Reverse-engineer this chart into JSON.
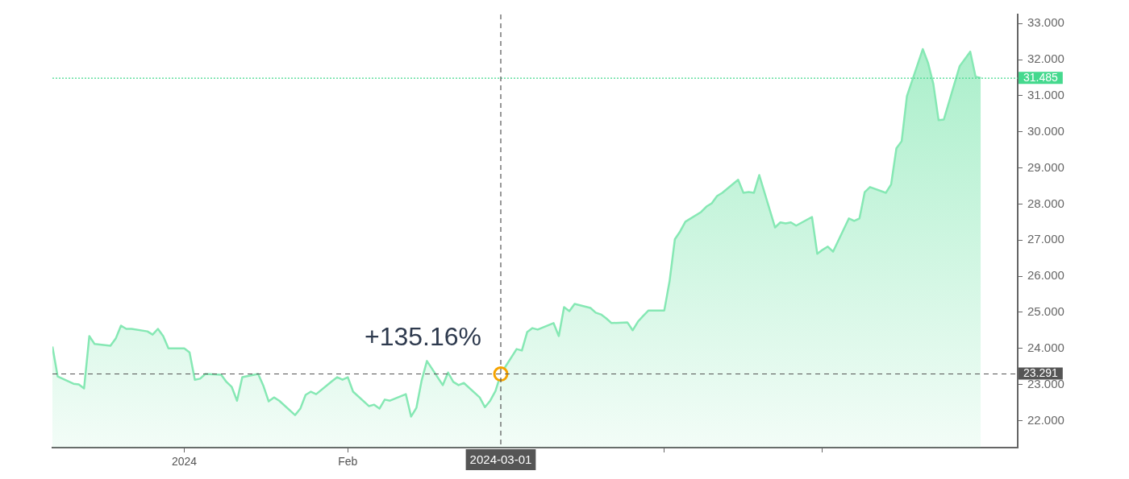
{
  "chart_data": {
    "type": "area",
    "grid": false,
    "legend": false,
    "xlim": [
      "2023-12-07",
      "2024-06-07"
    ],
    "xticks": [
      {
        "value": "2024-01-01",
        "label": "2024"
      },
      {
        "value": "2024-02-01",
        "label": "Feb"
      },
      {
        "value": "2024-04-01",
        "label": null
      },
      {
        "value": "2024-05-01",
        "label": null
      }
    ],
    "ylim": [
      21.25,
      33.25
    ],
    "yticks": [
      {
        "value": 22,
        "label": "22.000"
      },
      {
        "value": 23,
        "label": "23.000"
      },
      {
        "value": 24,
        "label": "24.000"
      },
      {
        "value": 25,
        "label": "25.000"
      },
      {
        "value": 26,
        "label": "26.000"
      },
      {
        "value": 27,
        "label": "27.000"
      },
      {
        "value": 28,
        "label": "28.000"
      },
      {
        "value": 29,
        "label": "29.000"
      },
      {
        "value": 30,
        "label": "30.000"
      },
      {
        "value": 31,
        "label": "31.000"
      },
      {
        "value": 32,
        "label": "32.000"
      },
      {
        "value": 33,
        "label": "33.000"
      }
    ],
    "series": [
      {
        "color": "#86e8b4",
        "marker": "none",
        "line_style": "solid",
        "x": [
          "2023-12-07",
          "2023-12-08",
          "2023-12-11",
          "2023-12-12",
          "2023-12-13",
          "2023-12-14",
          "2023-12-15",
          "2023-12-18",
          "2023-12-19",
          "2023-12-20",
          "2023-12-21",
          "2023-12-22",
          "2023-12-25",
          "2023-12-26",
          "2023-12-27",
          "2023-12-28",
          "2023-12-29",
          "2024-01-01",
          "2024-01-02",
          "2024-01-03",
          "2024-01-04",
          "2024-01-05",
          "2024-01-08",
          "2024-01-09",
          "2024-01-10",
          "2024-01-11",
          "2024-01-12",
          "2024-01-15",
          "2024-01-16",
          "2024-01-17",
          "2024-01-18",
          "2024-01-19",
          "2024-01-22",
          "2024-01-23",
          "2024-01-24",
          "2024-01-25",
          "2024-01-26",
          "2024-01-29",
          "2024-01-30",
          "2024-01-31",
          "2024-02-01",
          "2024-02-02",
          "2024-02-05",
          "2024-02-06",
          "2024-02-07",
          "2024-02-08",
          "2024-02-09",
          "2024-02-12",
          "2024-02-13",
          "2024-02-14",
          "2024-02-15",
          "2024-02-16",
          "2024-02-19",
          "2024-02-20",
          "2024-02-21",
          "2024-02-22",
          "2024-02-23",
          "2024-02-26",
          "2024-02-27",
          "2024-02-28",
          "2024-02-29",
          "2024-03-01",
          "2024-03-04",
          "2024-03-05",
          "2024-03-06",
          "2024-03-07",
          "2024-03-08",
          "2024-03-11",
          "2024-03-12",
          "2024-03-13",
          "2024-03-14",
          "2024-03-15",
          "2024-03-18",
          "2024-03-19",
          "2024-03-20",
          "2024-03-21",
          "2024-03-22",
          "2024-03-25",
          "2024-03-26",
          "2024-03-27",
          "2024-03-28",
          "2024-03-29",
          "2024-04-01",
          "2024-04-02",
          "2024-04-03",
          "2024-04-04",
          "2024-04-05",
          "2024-04-08",
          "2024-04-09",
          "2024-04-10",
          "2024-04-11",
          "2024-04-12",
          "2024-04-15",
          "2024-04-16",
          "2024-04-17",
          "2024-04-18",
          "2024-04-19",
          "2024-04-22",
          "2024-04-23",
          "2024-04-24",
          "2024-04-25",
          "2024-04-26",
          "2024-04-29",
          "2024-04-30",
          "2024-05-01",
          "2024-05-02",
          "2024-05-03",
          "2024-05-06",
          "2024-05-07",
          "2024-05-08",
          "2024-05-09",
          "2024-05-10",
          "2024-05-13",
          "2024-05-14",
          "2024-05-15",
          "2024-05-16",
          "2024-05-17",
          "2024-05-20",
          "2024-05-21",
          "2024-05-22",
          "2024-05-23",
          "2024-05-24",
          "2024-05-27",
          "2024-05-28",
          "2024-05-29",
          "2024-05-30",
          "2024-05-31"
        ],
        "values": [
          24.05,
          23.22,
          23.02,
          23.0,
          22.89,
          24.34,
          24.12,
          24.07,
          24.27,
          24.63,
          24.54,
          24.54,
          24.47,
          24.38,
          24.54,
          24.34,
          24.0,
          24.0,
          23.89,
          23.13,
          23.16,
          23.29,
          23.27,
          23.07,
          22.93,
          22.55,
          23.2,
          23.29,
          22.96,
          22.53,
          22.64,
          22.55,
          22.15,
          22.33,
          22.71,
          22.8,
          22.73,
          23.09,
          23.2,
          23.13,
          23.2,
          22.8,
          22.4,
          22.44,
          22.33,
          22.58,
          22.55,
          22.73,
          22.11,
          22.35,
          23.11,
          23.65,
          22.98,
          23.33,
          23.07,
          22.98,
          23.04,
          22.64,
          22.37,
          22.55,
          22.82,
          23.29,
          23.98,
          23.94,
          24.45,
          24.56,
          24.52,
          24.7,
          24.34,
          25.14,
          25.03,
          25.23,
          25.12,
          24.99,
          24.94,
          24.83,
          24.7,
          24.72,
          24.5,
          24.74,
          24.9,
          25.05,
          25.05,
          25.86,
          27.02,
          27.24,
          27.51,
          27.78,
          27.93,
          28.02,
          28.22,
          28.31,
          28.67,
          28.31,
          28.33,
          28.31,
          28.8,
          27.35,
          27.49,
          27.46,
          27.49,
          27.4,
          27.64,
          26.62,
          26.73,
          26.82,
          26.68,
          27.6,
          27.53,
          27.6,
          28.33,
          28.47,
          28.31,
          28.54,
          29.54,
          29.74,
          30.99,
          32.29,
          31.91,
          31.33,
          30.32,
          30.34,
          31.82,
          32.02,
          32.22,
          31.53,
          31.49
        ]
      },
      {
        "type": "scatter",
        "color": "#f5a300",
        "marker": "circle",
        "x": [
          "2024-03-01"
        ],
        "values": [
          23.29
        ]
      }
    ],
    "ref_lines": [
      {
        "axis": "y",
        "value": 31.485,
        "label": "31.485",
        "color": "#45d98e",
        "line_style": "dotted"
      },
      {
        "axis": "y",
        "value": 23.291,
        "label": "23.291",
        "color": "#555555",
        "line_style": "dashed"
      },
      {
        "axis": "x",
        "value": "2024-03-01",
        "label": "2024-03-01",
        "color": "#555555",
        "line_style": "dashed"
      }
    ],
    "annotations": [
      {
        "text": "+135.16%",
        "x": "2024-03-01",
        "y": 23.29
      }
    ]
  }
}
